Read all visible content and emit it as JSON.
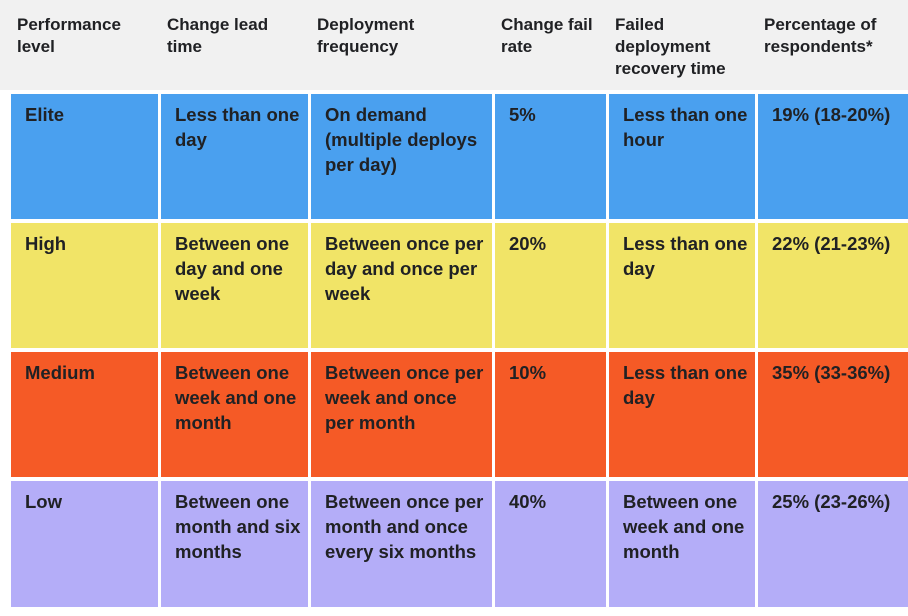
{
  "table": {
    "header": [
      "Performance level",
      "Change lead time",
      "Deployment frequency",
      "Change fail rate",
      "Failed deployment recovery time",
      "Percentage of respondents*"
    ],
    "rows": [
      [
        "Elite",
        "Less than one day",
        "On demand (multiple deploys per day)",
        "5%",
        "Less than one hour",
        "19% (18-20%)"
      ],
      [
        "High",
        "Between one day and one week",
        "Between once per day and once per week",
        "20%",
        "Less than one day",
        "22% (21-23%)"
      ],
      [
        "Medium",
        "Between one week and one month",
        "Between once per week and once per month",
        "10%",
        "Less than one day",
        "35% (33-36%)"
      ],
      [
        "Low",
        "Between one month and six months",
        "Between once per month and once every six months",
        "40%",
        "Between one week and one month",
        "25% (23-26%)"
      ]
    ]
  }
}
